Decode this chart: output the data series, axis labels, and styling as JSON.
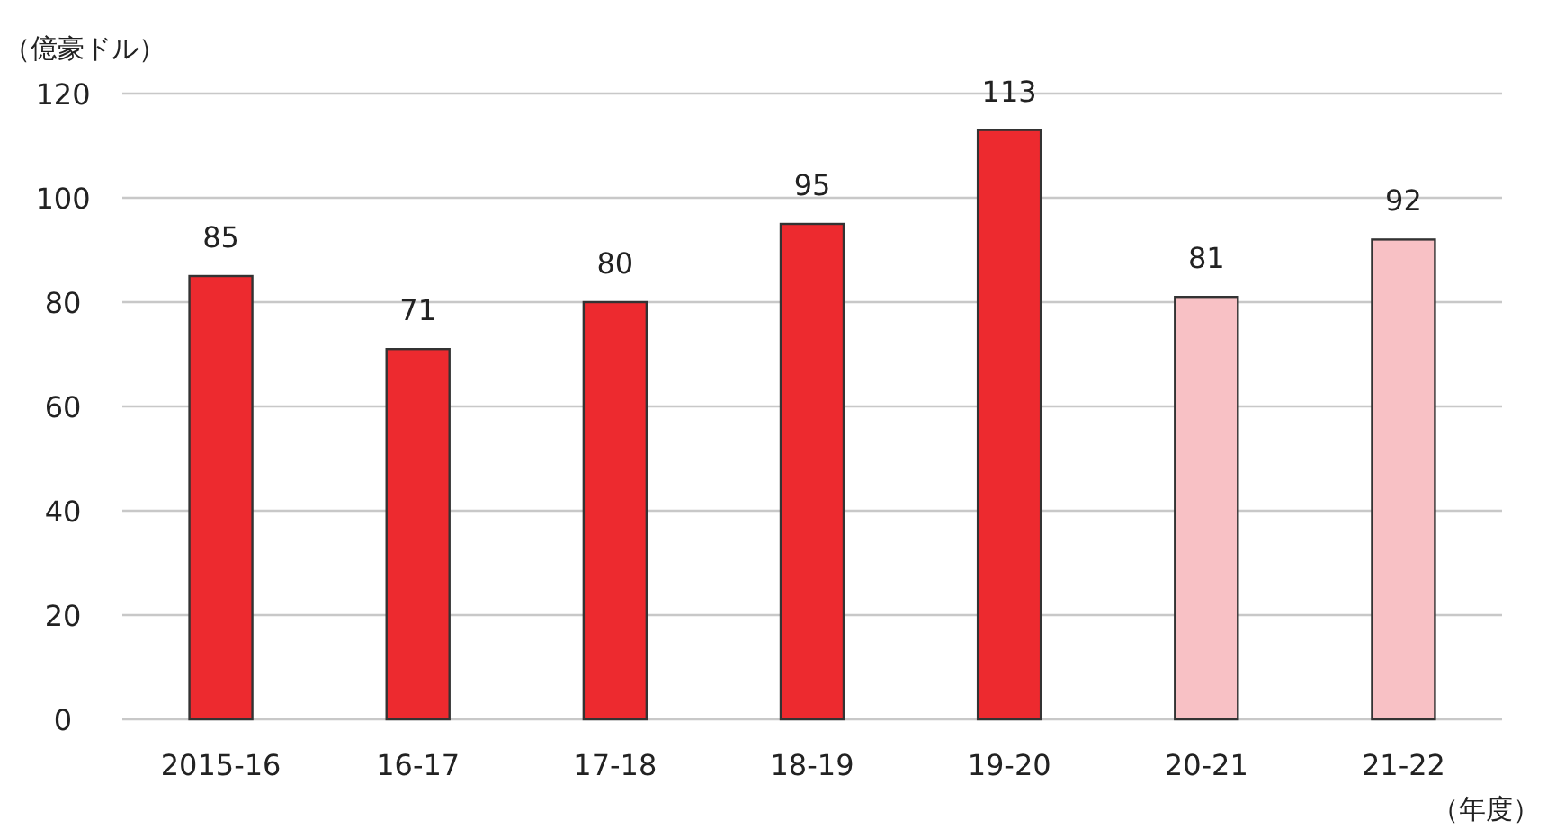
{
  "chart_data": {
    "type": "bar",
    "ylabel": "（億豪ドル）",
    "xlabel": "（年度）",
    "categories": [
      "2015-16",
      "16-17",
      "17-18",
      "18-19",
      "19-20",
      "20-21",
      "21-22"
    ],
    "values": [
      85,
      71,
      80,
      95,
      113,
      81,
      92
    ],
    "colors": [
      "#ed2a2f",
      "#ed2a2f",
      "#ed2a2f",
      "#ed2a2f",
      "#ed2a2f",
      "#f8c1c5",
      "#f8c1c5"
    ],
    "ylim": [
      0,
      120
    ],
    "yticks": [
      0,
      20,
      40,
      60,
      80,
      100,
      120
    ],
    "grid": "y",
    "data_labels": true
  }
}
